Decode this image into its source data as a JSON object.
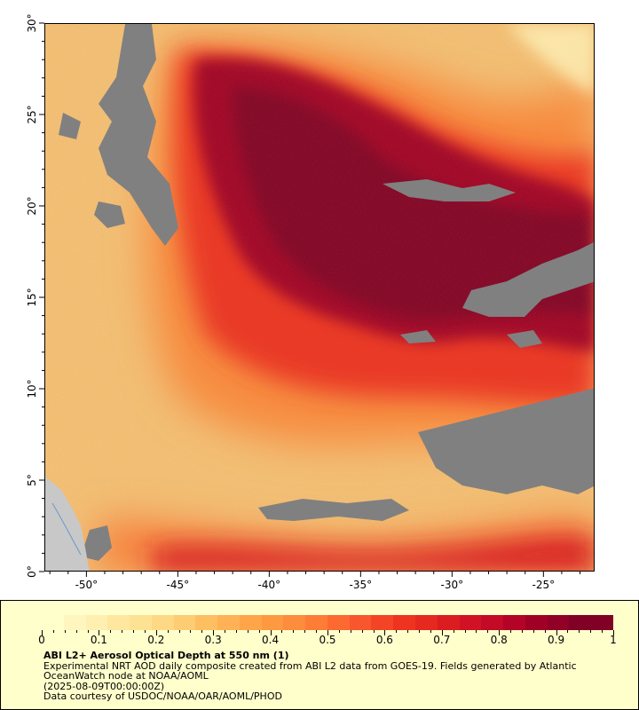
{
  "map": {
    "y_axis_labels": [
      "30°",
      "25°",
      "20°",
      "15°",
      "10°",
      "5°",
      "0°"
    ],
    "x_axis_labels": [
      "-50°",
      "-45°",
      "-40°",
      "-35°",
      "-30°",
      "-25°"
    ],
    "lat_range": [
      0,
      30
    ],
    "lon_range": [
      -52.3,
      -22.2
    ],
    "colors": {
      "land": "#808080",
      "continent": "#c8c8c8",
      "ocean_base": "#f7c478",
      "plume_core": "#800026"
    }
  },
  "legend": {
    "tick_labels": [
      "0",
      "0.1",
      "0.2",
      "0.3",
      "0.4",
      "0.5",
      "0.6",
      "0.7",
      "0.8",
      "0.9",
      "1"
    ],
    "colorbar_colors": [
      "#ffffcc",
      "#fff6bf",
      "#ffefb0",
      "#ffe7a0",
      "#fee293",
      "#fed884",
      "#fecc72",
      "#febe62",
      "#feb155",
      "#fea549",
      "#fd9941",
      "#fd8c3c",
      "#fd7d37",
      "#fc6a32",
      "#f8562c",
      "#f34526",
      "#ee3321",
      "#e52820",
      "#db1d22",
      "#d01224",
      "#c30a26",
      "#b30326",
      "#a00026",
      "#910026",
      "#800026",
      "#800026"
    ],
    "title": "ABI L2+ Aerosol Optical Depth at 550 nm (1)",
    "description": "Experimental NRT AOD daily composite created from ABI L2 data from GOES-19. Fields generated by Atlantic OceanWatch node at NOAA/AOML",
    "date": "(2025-08-09T00:00:00Z)",
    "credit": "Data courtesy of USDOC/NOAA/OAR/AOML/PHOD"
  }
}
